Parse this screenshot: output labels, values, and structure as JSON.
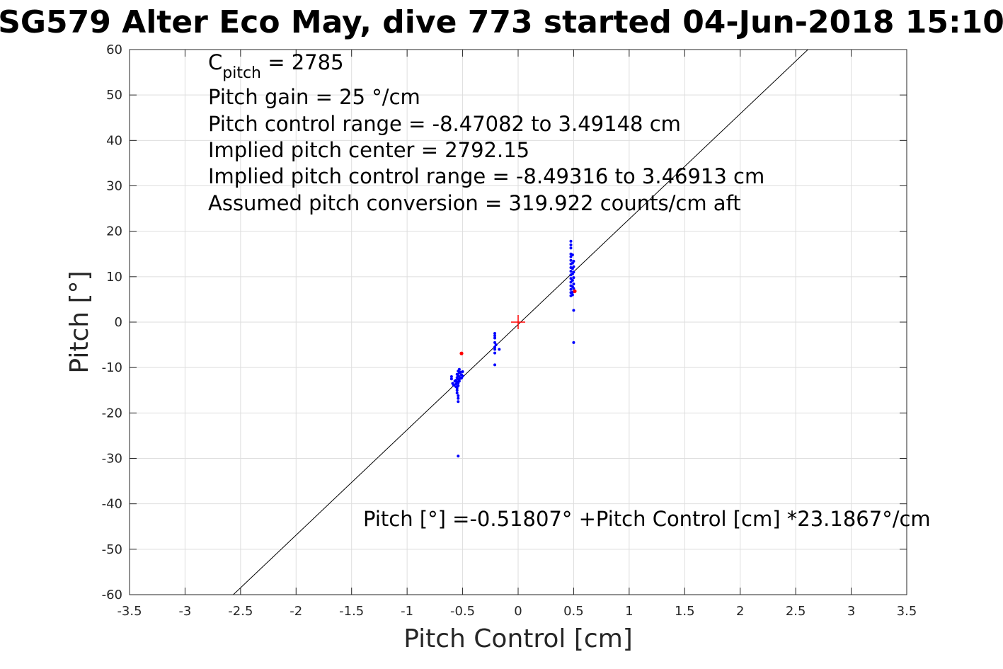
{
  "chart_data": {
    "type": "scatter",
    "title": "SG579 Alter Eco May, dive 773 started 04-Jun-2018 15:10",
    "xlabel": "Pitch Control [cm]",
    "ylabel": "Pitch [°]",
    "xlim": [
      -3.5,
      3.5
    ],
    "ylim": [
      -60,
      60
    ],
    "grid": true,
    "x_ticks": [
      -3.5,
      -3,
      -2.5,
      -2,
      -1.5,
      -1,
      -0.5,
      0,
      0.5,
      1,
      1.5,
      2,
      2.5,
      3,
      3.5
    ],
    "y_ticks": [
      -60,
      -50,
      -40,
      -30,
      -20,
      -10,
      0,
      10,
      20,
      30,
      40,
      50,
      60
    ],
    "x_tick_labels": [
      "-3.5",
      "-3",
      "-2.5",
      "-2",
      "-1.5",
      "-1",
      "-0.5",
      "0",
      "0.5",
      "1",
      "1.5",
      "2",
      "2.5",
      "3",
      "3.5"
    ],
    "y_tick_labels": [
      "-60",
      "-50",
      "-40",
      "-30",
      "-20",
      "-10",
      "0",
      "10",
      "20",
      "30",
      "40",
      "50",
      "60"
    ],
    "fit_line": {
      "intercept": -0.51807,
      "slope": 23.1867,
      "color": "#000000"
    },
    "center_marker": {
      "x": 0,
      "y": 0,
      "color": "#ff0000"
    },
    "series": [
      {
        "color": "#0000ff",
        "points": [
          [
            -0.6,
            -12.0
          ],
          [
            -0.6,
            -12.5
          ],
          [
            -0.59,
            -13.5
          ],
          [
            -0.58,
            -13.9
          ],
          [
            -0.57,
            -13.0
          ],
          [
            -0.56,
            -12.8
          ],
          [
            -0.56,
            -13.6
          ],
          [
            -0.56,
            -14.2
          ],
          [
            -0.55,
            -11.5
          ],
          [
            -0.55,
            -12.2
          ],
          [
            -0.55,
            -13.2
          ],
          [
            -0.55,
            -14.5
          ],
          [
            -0.55,
            -15.0
          ],
          [
            -0.55,
            -15.6
          ],
          [
            -0.54,
            -10.8
          ],
          [
            -0.54,
            -11.8
          ],
          [
            -0.54,
            -12.6
          ],
          [
            -0.54,
            -13.4
          ],
          [
            -0.54,
            -14.0
          ],
          [
            -0.54,
            -16.2
          ],
          [
            -0.54,
            -16.8
          ],
          [
            -0.54,
            -17.5
          ],
          [
            -0.53,
            -10.4
          ],
          [
            -0.53,
            -11.2
          ],
          [
            -0.53,
            -12.0
          ],
          [
            -0.53,
            -13.0
          ],
          [
            -0.52,
            -11.0
          ],
          [
            -0.52,
            -12.4
          ],
          [
            -0.51,
            -11.6
          ],
          [
            -0.51,
            -12.3
          ],
          [
            -0.5,
            -10.9
          ],
          [
            -0.5,
            -11.9
          ],
          [
            -0.54,
            -29.5
          ],
          [
            -0.21,
            -2.5
          ],
          [
            -0.21,
            -3.0
          ],
          [
            -0.21,
            -3.5
          ],
          [
            -0.21,
            -4.5
          ],
          [
            -0.21,
            -5.5
          ],
          [
            -0.21,
            -6.0
          ],
          [
            -0.21,
            -6.8
          ],
          [
            -0.21,
            -9.4
          ],
          [
            -0.2,
            -5.0
          ],
          [
            -0.17,
            -6.0
          ],
          [
            0.475,
            17.8
          ],
          [
            0.475,
            17.0
          ],
          [
            0.475,
            16.3
          ],
          [
            0.475,
            15.0
          ],
          [
            0.475,
            14.4
          ],
          [
            0.475,
            13.6
          ],
          [
            0.475,
            12.8
          ],
          [
            0.475,
            12.0
          ],
          [
            0.475,
            11.2
          ],
          [
            0.475,
            10.4
          ],
          [
            0.475,
            9.6
          ],
          [
            0.475,
            8.8
          ],
          [
            0.475,
            8.0
          ],
          [
            0.475,
            7.2
          ],
          [
            0.475,
            6.5
          ],
          [
            0.475,
            5.8
          ],
          [
            0.49,
            14.8
          ],
          [
            0.49,
            13.0
          ],
          [
            0.49,
            11.8
          ],
          [
            0.49,
            10.6
          ],
          [
            0.49,
            9.2
          ],
          [
            0.49,
            7.8
          ],
          [
            0.49,
            6.6
          ],
          [
            0.49,
            6.0
          ],
          [
            0.5,
            13.4
          ],
          [
            0.5,
            12.2
          ],
          [
            0.5,
            11.0
          ],
          [
            0.5,
            9.8
          ],
          [
            0.5,
            8.4
          ],
          [
            0.5,
            7.4
          ],
          [
            0.5,
            2.6
          ],
          [
            0.5,
            -4.5
          ]
        ]
      },
      {
        "color": "#ff0000",
        "points": [
          [
            -0.51,
            -6.9
          ],
          [
            0.51,
            6.8
          ]
        ]
      }
    ],
    "annotations": {
      "c_pitch_symbol": "C",
      "c_pitch_subscript": "pitch",
      "c_pitch_value": " = 2785",
      "lines": [
        "Pitch gain = 25 °/cm",
        "Pitch control range = -8.47082 to 3.49148 cm",
        "Implied pitch center = 2792.15",
        "Implied pitch control range = -8.49316 to 3.46913 cm",
        "Assumed pitch conversion = 319.922 counts/cm aft"
      ],
      "equation": "Pitch [°] =-0.51807° +Pitch Control [cm] *23.1867°/cm"
    }
  }
}
